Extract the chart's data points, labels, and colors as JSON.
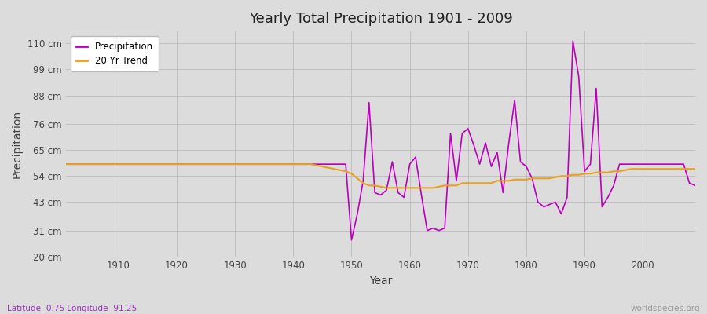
{
  "title": "Yearly Total Precipitation 1901 - 2009",
  "xlabel": "Year",
  "ylabel": "Precipitation",
  "bottom_left_label": "Latitude -0.75 Longitude -91.25",
  "bottom_right_label": "worldspecies.org",
  "background_color": "#dcdcdc",
  "plot_bg_color": "#dcdcdc",
  "precip_color": "#bb00bb",
  "trend_color": "#e8a020",
  "ylim": [
    20,
    115
  ],
  "yticks": [
    20,
    31,
    43,
    54,
    65,
    76,
    88,
    99,
    110
  ],
  "ytick_labels": [
    "20 cm",
    "31 cm",
    "43 cm",
    "54 cm",
    "65 cm",
    "76 cm",
    "88 cm",
    "99 cm",
    "110 cm"
  ],
  "xlim": [
    1901,
    2009
  ],
  "xticks": [
    1910,
    1920,
    1930,
    1940,
    1950,
    1960,
    1970,
    1980,
    1990,
    2000
  ],
  "years": [
    1901,
    1902,
    1903,
    1904,
    1905,
    1906,
    1907,
    1908,
    1909,
    1910,
    1911,
    1912,
    1913,
    1914,
    1915,
    1916,
    1917,
    1918,
    1919,
    1920,
    1921,
    1922,
    1923,
    1924,
    1925,
    1926,
    1927,
    1928,
    1929,
    1930,
    1931,
    1932,
    1933,
    1934,
    1935,
    1936,
    1937,
    1938,
    1939,
    1940,
    1941,
    1942,
    1943,
    1944,
    1945,
    1946,
    1947,
    1948,
    1949,
    1950,
    1951,
    1952,
    1953,
    1954,
    1955,
    1956,
    1957,
    1958,
    1959,
    1960,
    1961,
    1962,
    1963,
    1964,
    1965,
    1966,
    1967,
    1968,
    1969,
    1970,
    1971,
    1972,
    1973,
    1974,
    1975,
    1976,
    1977,
    1978,
    1979,
    1980,
    1981,
    1982,
    1983,
    1984,
    1985,
    1986,
    1987,
    1988,
    1989,
    1990,
    1991,
    1992,
    1993,
    1994,
    1995,
    1996,
    1997,
    1998,
    1999,
    2000,
    2001,
    2002,
    2003,
    2004,
    2005,
    2006,
    2007,
    2008,
    2009
  ],
  "precip": [
    59,
    59,
    59,
    59,
    59,
    59,
    59,
    59,
    59,
    59,
    59,
    59,
    59,
    59,
    59,
    59,
    59,
    59,
    59,
    59,
    59,
    59,
    59,
    59,
    59,
    59,
    59,
    59,
    59,
    59,
    59,
    59,
    59,
    59,
    59,
    59,
    59,
    59,
    59,
    59,
    59,
    59,
    59,
    59,
    59,
    59,
    59,
    59,
    59,
    27,
    38,
    52,
    85,
    47,
    46,
    48,
    60,
    47,
    45,
    59,
    62,
    46,
    31,
    32,
    31,
    32,
    72,
    52,
    72,
    74,
    67,
    59,
    68,
    58,
    64,
    47,
    68,
    86,
    60,
    58,
    53,
    43,
    41,
    42,
    43,
    38,
    45,
    111,
    96,
    56,
    59,
    91,
    41,
    45,
    50,
    59,
    59,
    59,
    59,
    59,
    59,
    59,
    59,
    59,
    59,
    59,
    59,
    51,
    50
  ],
  "trend": [
    59,
    59,
    59,
    59,
    59,
    59,
    59,
    59,
    59,
    59,
    59,
    59,
    59,
    59,
    59,
    59,
    59,
    59,
    59,
    59,
    59,
    59,
    59,
    59,
    59,
    59,
    59,
    59,
    59,
    59,
    59,
    59,
    59,
    59,
    59,
    59,
    59,
    59,
    59,
    59,
    59,
    59,
    59,
    58.5,
    58,
    57.5,
    57,
    56.5,
    56,
    55,
    53,
    51,
    50,
    50,
    49.5,
    49,
    49,
    49,
    49,
    49,
    49,
    49,
    49,
    49,
    49.5,
    50,
    50,
    50,
    51,
    51,
    51,
    51,
    51,
    51,
    52,
    52,
    52,
    52.5,
    52.5,
    52.5,
    53,
    53,
    53,
    53,
    53.5,
    54,
    54,
    54.5,
    54.5,
    55,
    55,
    55.5,
    55.5,
    55.5,
    56,
    56,
    56.5,
    57,
    57,
    57,
    57,
    57,
    57,
    57,
    57,
    57,
    57,
    57,
    57
  ]
}
